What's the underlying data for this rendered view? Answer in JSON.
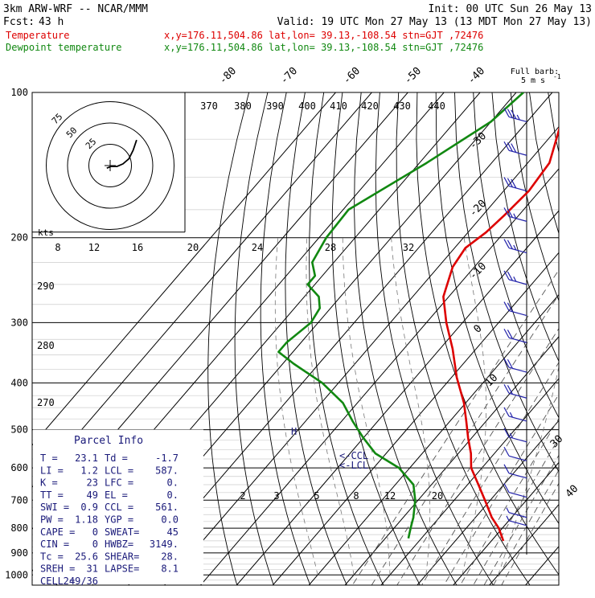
{
  "header": {
    "line1_left": "3km ARW-WRF -- NCAR/MMM",
    "line1_right": "Init: 00 UTC Sun 26 May 13",
    "line2_left": "Fcst:",
    "line2_fcst": "43 h",
    "line2_right": "Valid: 19 UTC Mon 27 May 13 (13 MDT Mon 27 May 13)",
    "temp_label": "Temperature",
    "temp_info": "x,y=176.11,504.86   lat,lon= 39.13,-108.54  stn=GJT ,72476",
    "dew_label": "Dewpoint temperature",
    "dew_info": "x,y=176.11,504.86   lat,lon= 39.13,-108.54  stn=GJT ,72476"
  },
  "colors": {
    "temperature": "#dd0000",
    "dewpoint": "#118811",
    "wind_barbs": "#2222aa",
    "parcel_text": "#1a1a7a",
    "grid": "#000000"
  },
  "barb_legend": {
    "line1": "Full barb:",
    "line2": "5 m s",
    "exp": "-1"
  },
  "hodograph": {
    "units": "kts",
    "ring_labels": [
      "25",
      "50",
      "75"
    ]
  },
  "parcel": {
    "title": "Parcel Info",
    "rows": [
      [
        "T  =",
        "23.1",
        "Td =",
        "-1.7"
      ],
      [
        "LI =",
        "1.2",
        "LCL =",
        "587."
      ],
      [
        "K  =",
        "23",
        "LFC =",
        "0."
      ],
      [
        "TT =",
        "49",
        "EL  =",
        "0."
      ],
      [
        "SWI =",
        "0.9",
        "CCL =",
        "561."
      ],
      [
        "PW =",
        "1.18",
        "YGP =",
        "0.0"
      ],
      [
        "CAPE =",
        "0",
        "SWEAT=",
        "45"
      ],
      [
        "CIN =",
        "0",
        "HWBZ=",
        "3149."
      ],
      [
        "Tc =",
        "25.6",
        "SHEAR=",
        "28."
      ],
      [
        "SREH =",
        "31",
        "LAPSE=",
        "8.1"
      ],
      [
        "CELL =",
        "249/36",
        "",
        ""
      ]
    ]
  },
  "markers": {
    "ccl": "<-CCL",
    "lcl": "<-LCL",
    "h": "H"
  },
  "chart_data": {
    "type": "line",
    "title": "",
    "xlabel": "",
    "ylabel": "",
    "pressure_levels": [
      100,
      200,
      300,
      400,
      500,
      600,
      700,
      800,
      900,
      1000
    ],
    "isotherm_labels": [
      "-80",
      "-70",
      "-60",
      "-50",
      "-40",
      "-30",
      "-20",
      "-10",
      "0",
      "10",
      "30",
      "40"
    ],
    "theta_labels": [
      "370",
      "380",
      "390",
      "400",
      "410",
      "420",
      "430",
      "440"
    ],
    "dry_adiabat_labels": [
      "290",
      "280",
      "270"
    ],
    "mixing_ratio_labels_upper": [
      "8",
      "12",
      "16",
      "20",
      "24",
      "28",
      "32"
    ],
    "mixing_ratio_labels_lower": [
      "2",
      "3",
      "5",
      "8",
      "12",
      "20"
    ],
    "series": [
      {
        "name": "Temperature",
        "color": "#dd0000",
        "p": [
          100,
          115,
          140,
          160,
          180,
          195,
          210,
          230,
          265,
          300,
          340,
          390,
          440,
          480,
          520,
          560,
          600,
          650,
          700,
          760,
          800,
          850
        ],
        "t": [
          -62.5,
          -60.5,
          -54,
          -53,
          -54,
          -55,
          -57,
          -56,
          -51.5,
          -44.5,
          -36.5,
          -28.5,
          -20.5,
          -15.5,
          -11,
          -6.5,
          -3,
          3,
          8.5,
          14.5,
          19,
          23.3
        ]
      },
      {
        "name": "Dewpoint temperature",
        "color": "#118811",
        "p": [
          100,
          115,
          140,
          175,
          200,
          225,
          240,
          250,
          265,
          280,
          300,
          330,
          345,
          365,
          400,
          440,
          480,
          520,
          560,
          600,
          650,
          700,
          760,
          800,
          840
        ],
        "t": [
          -78,
          -80,
          -88,
          -98.5,
          -98,
          -96,
          -92,
          -92,
          -86,
          -83,
          -82,
          -84,
          -84,
          -77,
          -64.5,
          -54,
          -47,
          -40,
          -33,
          -23,
          -15,
          -10.8,
          -7.2,
          -5.4,
          -3.6
        ]
      }
    ],
    "hodograph_trace_kts": [
      [
        4,
        -3
      ],
      [
        -1,
        -1
      ],
      [
        -8,
        -1
      ],
      [
        -15,
        2
      ],
      [
        -22,
        8
      ],
      [
        -27,
        18
      ],
      [
        -31,
        30
      ]
    ],
    "wind_barbs": [
      {
        "p": 115,
        "kts": 35
      },
      {
        "p": 135,
        "kts": 30
      },
      {
        "p": 160,
        "kts": 30
      },
      {
        "p": 185,
        "kts": 25
      },
      {
        "p": 215,
        "kts": 25
      },
      {
        "p": 250,
        "kts": 25
      },
      {
        "p": 290,
        "kts": 20
      },
      {
        "p": 330,
        "kts": 20
      },
      {
        "p": 380,
        "kts": 20
      },
      {
        "p": 430,
        "kts": 20
      },
      {
        "p": 480,
        "kts": 15
      },
      {
        "p": 530,
        "kts": 15
      },
      {
        "p": 580,
        "kts": 10
      },
      {
        "p": 630,
        "kts": 10
      },
      {
        "p": 690,
        "kts": 10
      },
      {
        "p": 760,
        "kts": 5
      },
      {
        "p": 790,
        "kts": 5
      }
    ]
  }
}
